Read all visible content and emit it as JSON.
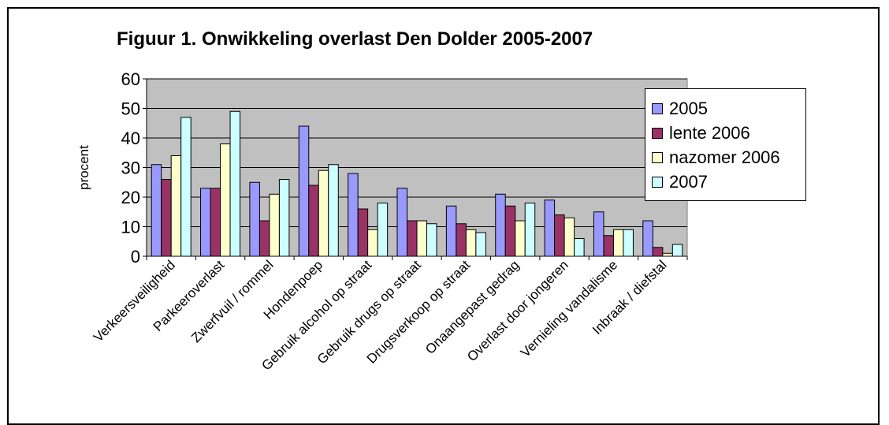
{
  "chart_data": {
    "type": "bar",
    "title": "Figuur 1. Onwikkeling overlast Den Dolder 2005-2007",
    "ylabel": "procent",
    "xlabel": "",
    "ylim": [
      0,
      60
    ],
    "yticks": [
      0,
      10,
      20,
      30,
      40,
      50,
      60
    ],
    "grid": true,
    "legend_position": "right",
    "categories": [
      "Verkeersveiligheid",
      "Parkeeroverlast",
      "Zwerfvuil / rommel",
      "Hondenpoep",
      "Gebruik alcohol op straat",
      "Gebruik drugs op straat",
      "Drugsverkoop op straat",
      "Onaangepast gedrag",
      "Overlast door jongeren",
      "Vernieling vandalisme",
      "Inbraak / diefstal"
    ],
    "series": [
      {
        "name": "2005",
        "color": "#9999ff",
        "values": [
          31,
          23,
          25,
          44,
          28,
          23,
          17,
          21,
          19,
          15,
          12
        ]
      },
      {
        "name": "lente 2006",
        "color": "#993366",
        "values": [
          26,
          23,
          12,
          24,
          16,
          12,
          11,
          17,
          14,
          7,
          3
        ]
      },
      {
        "name": "nazomer 2006",
        "color": "#ffffcc",
        "values": [
          34,
          38,
          21,
          29,
          9,
          12,
          9,
          12,
          13,
          9,
          1
        ]
      },
      {
        "name": "2007",
        "color": "#ccffff",
        "values": [
          47,
          49,
          26,
          31,
          18,
          11,
          8,
          18,
          6,
          9,
          4
        ]
      }
    ],
    "plot_background": "#c0c0c0"
  }
}
